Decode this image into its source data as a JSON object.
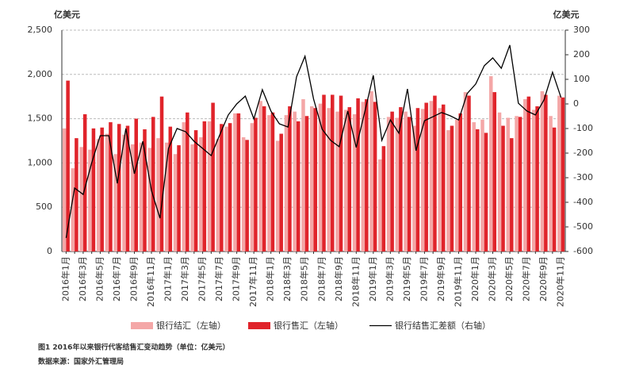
{
  "chart_data": {
    "type": "bar",
    "left_axis_unit": "亿美元",
    "right_axis_unit": "亿美元",
    "caption": "图1  2016年以来银行代客结售汇变动趋势（单位：亿美元）",
    "source": "数据来源：国家外汇管理局",
    "categories": [
      "2016年1月",
      null,
      "2016年3月",
      null,
      "2016年5月",
      null,
      "2016年7月",
      null,
      "2016年9月",
      null,
      "2016年11月",
      null,
      "2017年1月",
      null,
      "2017年3月",
      null,
      "2017年5月",
      null,
      "2017年7月",
      null,
      "2017年9月",
      null,
      "2017年11月",
      null,
      "2018年1月",
      null,
      "2018年3月",
      null,
      "2018年5月",
      null,
      "2018年7月",
      null,
      "2018年9月",
      null,
      "2018年11月",
      null,
      "2019年1月",
      null,
      "2019年3月",
      null,
      "2019年5月",
      null,
      "2019年7月",
      null,
      "2019年9月",
      null,
      "2019年11月",
      null,
      "2020年1月",
      null,
      "2020年3月",
      null,
      "2020年5月",
      null,
      "2020年7月",
      null,
      "2020年9月",
      null,
      "2020年11月"
    ],
    "series": [
      {
        "name": "银行结汇（左轴）",
        "color": "#f4a7a7",
        "type": "bar",
        "values": [
          1390,
          940,
          1180,
          1150,
          1270,
          1330,
          1100,
          1320,
          1210,
          1230,
          1170,
          1280,
          1230,
          1100,
          1460,
          1210,
          1290,
          1470,
          1270,
          1410,
          1560,
          1290,
          1450,
          1700,
          1540,
          1250,
          1540,
          1580,
          1720,
          1640,
          1670,
          1620,
          1580,
          1600,
          1550,
          1690,
          1810,
          1040,
          1520,
          1510,
          1580,
          1420,
          1610,
          1700,
          1620,
          1370,
          1490,
          1800,
          1460,
          1490,
          1980,
          1570,
          1510,
          1530,
          1720,
          1600,
          1810,
          1530,
          1760
        ]
      },
      {
        "name": "银行售汇（左轴）",
        "color": "#e0242b",
        "type": "bar",
        "values": [
          1930,
          1280,
          1550,
          1390,
          1400,
          1460,
          1440,
          1420,
          1500,
          1380,
          1520,
          1750,
          1410,
          1200,
          1570,
          1370,
          1470,
          1680,
          1440,
          1450,
          1560,
          1260,
          1510,
          1640,
          1570,
          1330,
          1640,
          1470,
          1530,
          1620,
          1770,
          1770,
          1760,
          1630,
          1730,
          1720,
          1690,
          1190,
          1580,
          1630,
          1520,
          1620,
          1680,
          1760,
          1660,
          1420,
          1560,
          1760,
          1380,
          1340,
          1800,
          1420,
          1280,
          1520,
          1750,
          1640,
          1770,
          1400,
          1740
        ]
      },
      {
        "name": "银行结售汇差额（右轴）",
        "color": "#000000",
        "type": "line",
        "axis": "y2",
        "values": [
          -545,
          -342,
          -368,
          -239,
          -129,
          -129,
          -323,
          -100,
          -284,
          -152,
          -352,
          -465,
          -181,
          -100,
          -113,
          -152,
          -181,
          -210,
          -126,
          -45,
          0,
          32,
          -61,
          58,
          -29,
          -81,
          -94,
          110,
          194,
          20,
          -103,
          -148,
          -174,
          -29,
          -177,
          -32,
          116,
          -148,
          -65,
          -119,
          61,
          -190,
          -68,
          -52,
          -35,
          -48,
          -65,
          42,
          81,
          155,
          187,
          145,
          239,
          3,
          -29,
          -45,
          16,
          129,
          26
        ]
      }
    ],
    "ylim": [
      0,
      2500
    ],
    "yticks": [
      0,
      500,
      {
        "value": 1000,
        "label": "1,000"
      },
      {
        "value": 1500,
        "label": "1,500"
      },
      {
        "value": 2000,
        "label": "2,000"
      },
      {
        "value": 2500,
        "label": "2,500"
      }
    ],
    "y2lim": [
      -600,
      300
    ],
    "y2ticks": [
      -600,
      -500,
      -400,
      -300,
      -200,
      -100,
      0,
      100,
      200,
      300
    ],
    "grid": true
  }
}
